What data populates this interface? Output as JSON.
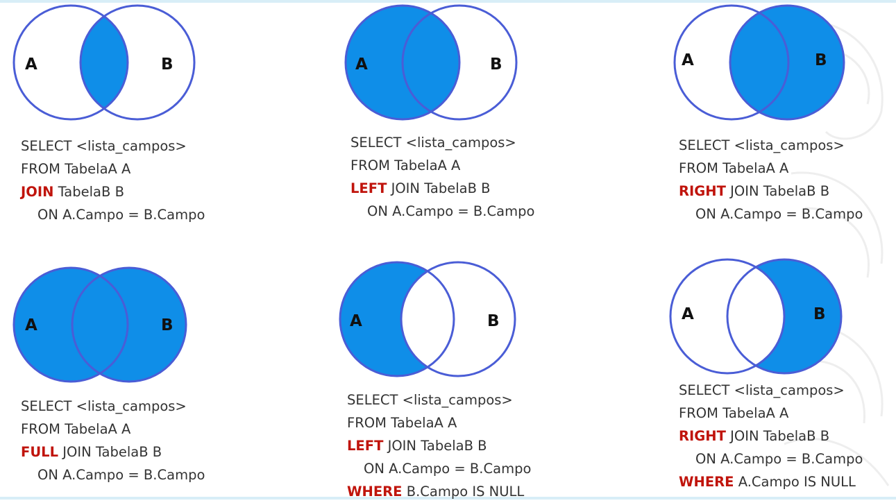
{
  "colors": {
    "fill": "#0f8ee8",
    "stroke": "#4a5dd6",
    "keyword": "#c0140c",
    "text": "#333333"
  },
  "panels": [
    {
      "id": "inner-join",
      "venn": {
        "label_a": "A",
        "label_b": "B",
        "shaded": "intersection"
      },
      "code": {
        "line1": "SELECT <lista_campos>",
        "line2": "FROM TabelaA A",
        "line3_keyword": "JOIN",
        "line3_rest": " TabelaB B",
        "line4": "ON A.Campo = B.Campo"
      }
    },
    {
      "id": "left-join",
      "venn": {
        "label_a": "A",
        "label_b": "B",
        "shaded": "left-full"
      },
      "code": {
        "line1": "SELECT <lista_campos>",
        "line2": "FROM TabelaA A",
        "line3_keyword": "LEFT",
        "line3_rest": " JOIN TabelaB B",
        "line4": "ON A.Campo = B.Campo"
      }
    },
    {
      "id": "right-join",
      "venn": {
        "label_a": "A",
        "label_b": "B",
        "shaded": "right-full"
      },
      "code": {
        "line1": "SELECT <lista_campos>",
        "line2": "FROM TabelaA A",
        "line3_keyword": "RIGHT",
        "line3_rest": " JOIN TabelaB B",
        "line4": "ON A.Campo = B.Campo"
      }
    },
    {
      "id": "full-join",
      "venn": {
        "label_a": "A",
        "label_b": "B",
        "shaded": "both"
      },
      "code": {
        "line1": "SELECT <lista_campos>",
        "line2": "FROM TabelaA A",
        "line3_keyword": "FULL",
        "line3_rest": " JOIN TabelaB B",
        "line4": "ON A.Campo = B.Campo"
      }
    },
    {
      "id": "left-excluding-join",
      "venn": {
        "label_a": "A",
        "label_b": "B",
        "shaded": "left-only"
      },
      "code": {
        "line1": "SELECT <lista_campos>",
        "line2": "FROM TabelaA A",
        "line3_keyword": "LEFT",
        "line3_rest": " JOIN TabelaB B",
        "line4": "ON A.Campo = B.Campo",
        "line5_keyword": "WHERE",
        "line5_rest": " B.Campo IS NULL"
      }
    },
    {
      "id": "right-excluding-join",
      "venn": {
        "label_a": "A",
        "label_b": "B",
        "shaded": "right-only"
      },
      "code": {
        "line1": "SELECT <lista_campos>",
        "line2": "FROM TabelaA A",
        "line3_keyword": "RIGHT",
        "line3_rest": " JOIN TabelaB B",
        "line4": "ON A.Campo = B.Campo",
        "line5_keyword": "WHERE",
        "line5_rest": " A.Campo IS NULL"
      }
    }
  ]
}
